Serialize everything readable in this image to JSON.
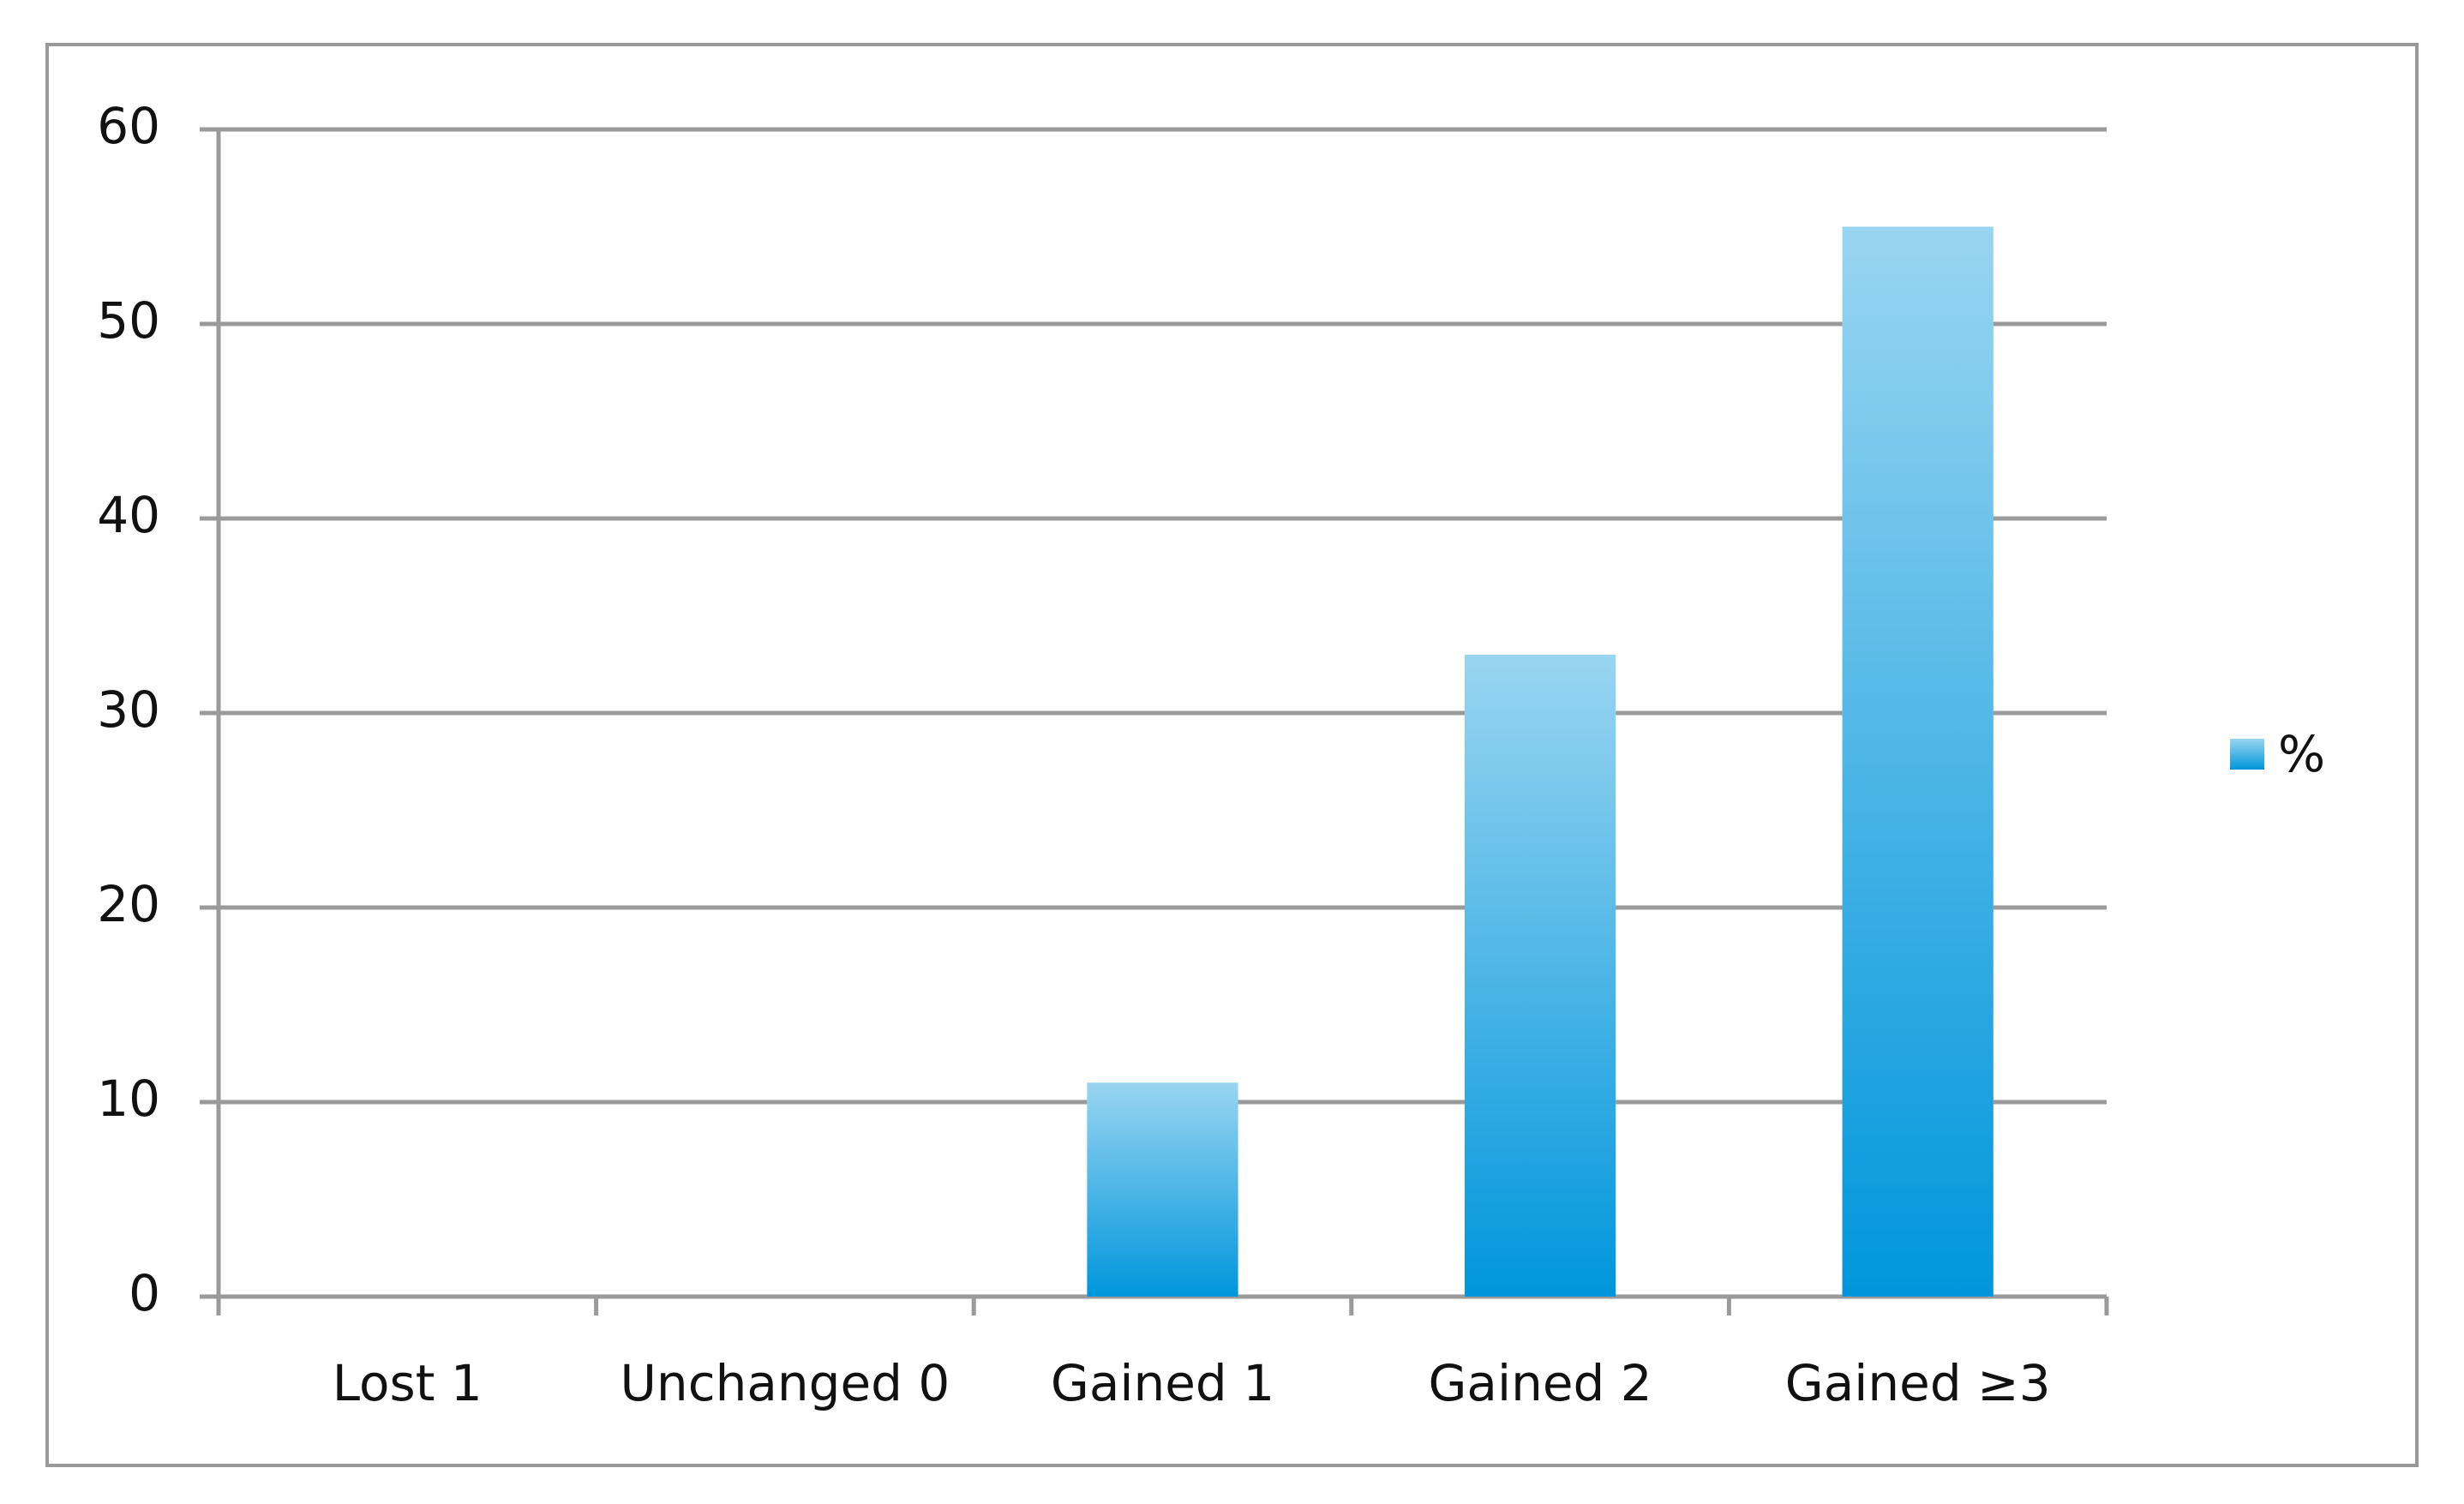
{
  "chart_data": {
    "type": "bar",
    "categories": [
      "Lost 1",
      "Unchanged 0",
      "Gained 1",
      "Gained 2",
      "Gained ≥3"
    ],
    "series": [
      {
        "name": "%",
        "color": "#0096dc",
        "values": [
          0,
          0,
          11,
          33,
          55
        ]
      }
    ],
    "ylim": [
      0,
      60
    ],
    "yticks": [
      0,
      10,
      20,
      30,
      40,
      50,
      60
    ],
    "grid": true,
    "legend": "right"
  }
}
